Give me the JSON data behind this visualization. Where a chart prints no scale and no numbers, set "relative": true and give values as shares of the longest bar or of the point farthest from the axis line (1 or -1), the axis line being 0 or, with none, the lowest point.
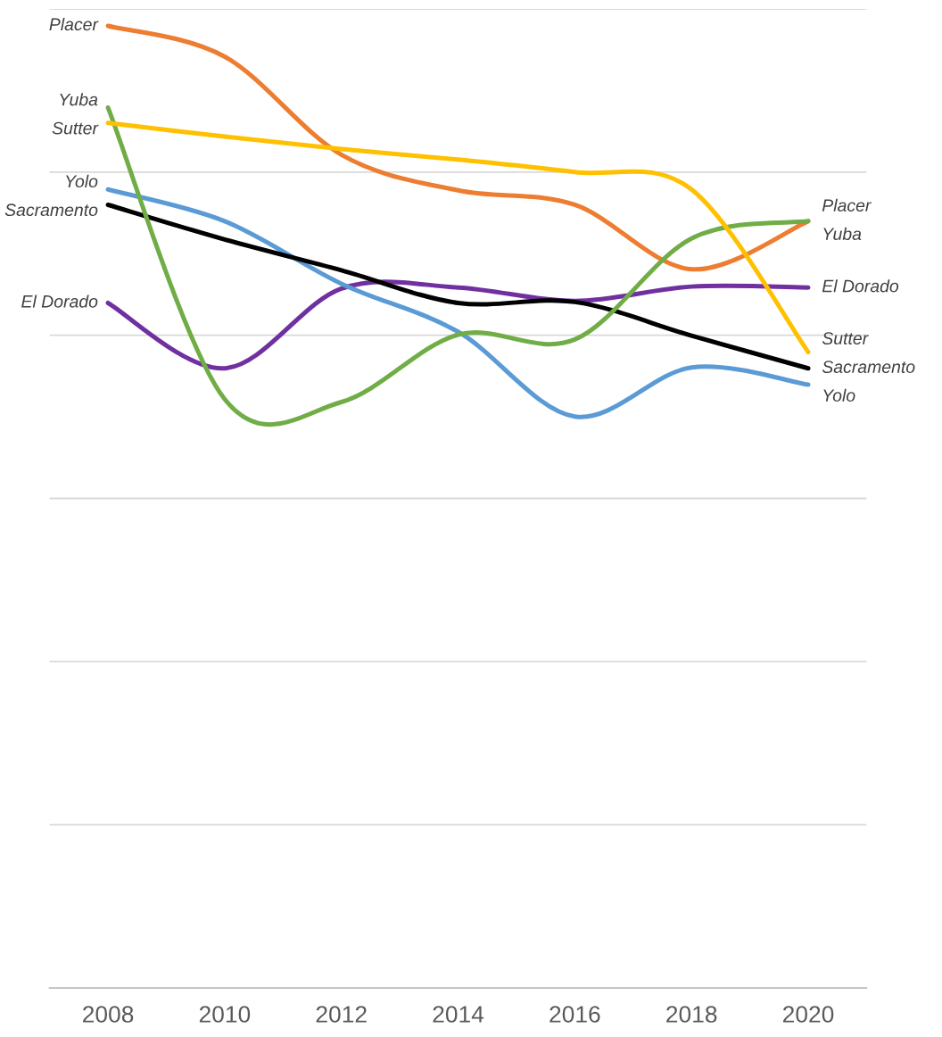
{
  "chart_data": {
    "type": "line",
    "relative": true,
    "grid": "y",
    "categories": [
      "2008",
      "2010",
      "2012",
      "2014",
      "2016",
      "2018",
      "2020"
    ],
    "series": [
      {
        "name": "Placer",
        "color": "#ed7d31",
        "values": [
          1.0,
          0.968,
          0.866,
          0.829,
          0.814,
          0.747,
          0.797
        ]
      },
      {
        "name": "El Dorado",
        "color": "#7030a0",
        "values": [
          0.712,
          0.644,
          0.727,
          0.728,
          0.714,
          0.729,
          0.728
        ]
      },
      {
        "name": "Yolo",
        "color": "#5b9bd5",
        "values": [
          0.83,
          0.797,
          0.732,
          0.682,
          0.594,
          0.645,
          0.627
        ]
      },
      {
        "name": "Sacramento",
        "color": "#000000",
        "values": [
          0.814,
          0.778,
          0.746,
          0.712,
          0.713,
          0.678,
          0.644
        ]
      },
      {
        "name": "Yuba",
        "color": "#70ad47",
        "values": [
          0.915,
          0.612,
          0.609,
          0.679,
          0.674,
          0.779,
          0.797
        ]
      },
      {
        "name": "Sutter",
        "color": "#ffc000",
        "values": [
          0.899,
          0.885,
          0.872,
          0.861,
          0.848,
          0.83,
          0.661
        ]
      }
    ]
  }
}
